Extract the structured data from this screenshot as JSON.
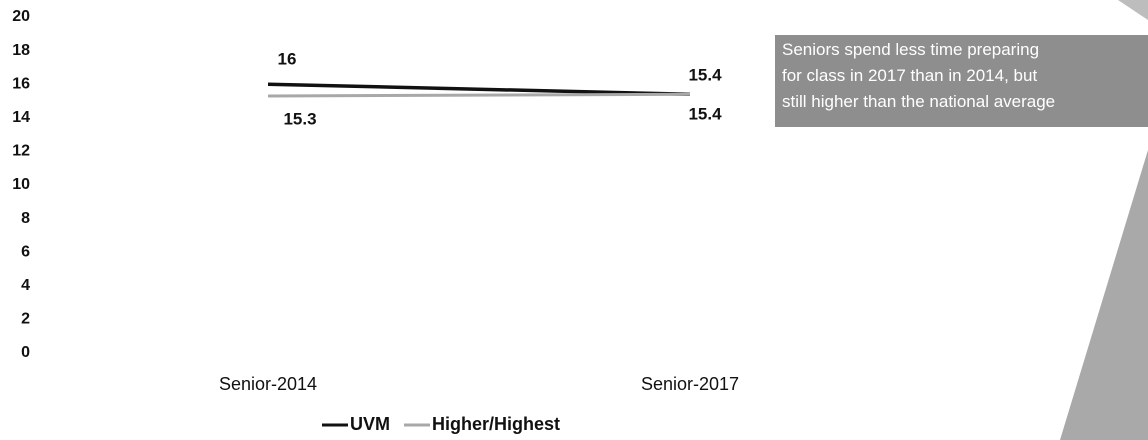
{
  "chart_data": {
    "type": "line",
    "categories": [
      "Senior-2014",
      "Senior-2017"
    ],
    "series": [
      {
        "name": "UVM",
        "color": "#111111",
        "values": [
          16,
          15.4
        ]
      },
      {
        "name": "Higher/Highest",
        "color": "#a8a8a8",
        "values": [
          15.3,
          15.4
        ]
      }
    ],
    "ylim": [
      0,
      20
    ],
    "yticks": [
      0,
      2,
      4,
      6,
      8,
      10,
      12,
      14,
      16,
      18,
      20
    ],
    "annotation": [
      "Seniors spend less time preparing",
      "for class in 2017 than in 2014, but",
      "still higher than the national average"
    ]
  }
}
